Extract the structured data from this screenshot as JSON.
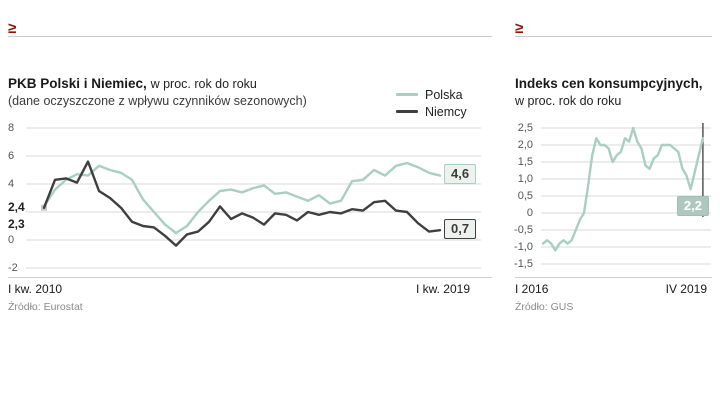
{
  "charts": {
    "left": {
      "logo": "≥",
      "title_bold": "PKB Polski i Niemiec,",
      "title_rest": " w proc. rok do roku",
      "subtitle": "(dane oczyszczone z wpływu czynników sezonowych)",
      "legend": [
        {
          "label": "Polska"
        },
        {
          "label": "Niemcy"
        }
      ],
      "start_label_top": "2,4",
      "start_label_bottom": "2,3",
      "badge_polska": "4,6",
      "badge_niemcy": "0,7",
      "x_start": "I kw. 2010",
      "x_end": "I kw. 2019",
      "source": "Źródło: Eurostat"
    },
    "right": {
      "logo": "≥",
      "title_bold": "Indeks cen konsumpcyjnych,",
      "title_line2": "w proc. rok do roku",
      "badge": "2,2",
      "x_start": "I 2016",
      "x_end": "IV 2019",
      "source": "Źródło: GUS"
    }
  },
  "colors": {
    "polska": "#a9cec3",
    "niemcy": "#3f3f3f",
    "cpi_line": "#a9cec3",
    "grid": "#d8d8d8",
    "logo_red": "#8c1204",
    "marker_line": "#4a4a4a"
  },
  "chart_data": [
    {
      "type": "line",
      "title": "PKB Polski i Niemiec, w proc. rok do roku (dane oczyszczone z wpływu czynników sezonowych)",
      "x_range": [
        "I kw. 2010",
        "I kw. 2019"
      ],
      "x_unit": "quarter",
      "ylim": [
        -2,
        8
      ],
      "grid": true,
      "legend_position": "top-right",
      "y_ticks": [
        {
          "value": 8,
          "label": "8"
        },
        {
          "value": 6,
          "label": "6"
        },
        {
          "value": 4,
          "label": "4"
        },
        {
          "value": 2,
          "label": ""
        },
        {
          "value": 0,
          "label": "0"
        },
        {
          "value": -2,
          "label": "-2"
        }
      ],
      "series": [
        {
          "name": "Polska",
          "color": "#a9cec3",
          "start_value": 2.4,
          "end_value": 4.6,
          "end_label": "4,6",
          "values": [
            2.4,
            3.6,
            4.3,
            4.7,
            4.6,
            5.3,
            5.0,
            4.8,
            4.3,
            2.9,
            2.0,
            1.1,
            0.5,
            1.0,
            2.0,
            2.8,
            3.5,
            3.6,
            3.4,
            3.7,
            3.9,
            3.3,
            3.4,
            3.1,
            2.8,
            3.2,
            2.6,
            2.8,
            4.2,
            4.3,
            5.0,
            4.6,
            5.3,
            5.5,
            5.2,
            4.8,
            4.6
          ]
        },
        {
          "name": "Niemcy",
          "color": "#3f3f3f",
          "start_value": 2.3,
          "end_value": 0.7,
          "end_label": "0,7",
          "values": [
            2.3,
            4.3,
            4.4,
            4.1,
            5.6,
            3.5,
            3.0,
            2.3,
            1.3,
            1.0,
            0.9,
            0.3,
            -0.4,
            0.4,
            0.6,
            1.3,
            2.4,
            1.5,
            1.9,
            1.6,
            1.1,
            1.9,
            1.8,
            1.4,
            2.0,
            1.8,
            2.0,
            1.9,
            2.2,
            2.1,
            2.7,
            2.8,
            2.1,
            2.0,
            1.2,
            0.6,
            0.7
          ]
        }
      ],
      "source": "Źródło: Eurostat"
    },
    {
      "type": "line",
      "title": "Indeks cen konsumpcyjnych, w proc. rok do roku",
      "x_range": [
        "I 2016",
        "IV 2019"
      ],
      "x_unit": "month",
      "ylim": [
        -1.5,
        2.5
      ],
      "grid": true,
      "y_ticks": [
        {
          "value": 2.5,
          "label": "2,5"
        },
        {
          "value": 2.0,
          "label": "2,0"
        },
        {
          "value": 1.5,
          "label": "1,5"
        },
        {
          "value": 1.0,
          "label": "1,0"
        },
        {
          "value": 0.5,
          "label": "0,5"
        },
        {
          "value": 0,
          "label": "0"
        },
        {
          "value": -0.5,
          "label": "-0,5"
        },
        {
          "value": -1.0,
          "label": "-1,0"
        },
        {
          "value": -1.5,
          "label": "-1,5"
        }
      ],
      "series": [
        {
          "name": "Indeks cen konsumpcyjnych",
          "color": "#a9cec3",
          "end_value": 2.2,
          "end_label": "2,2",
          "values": [
            -0.9,
            -0.8,
            -0.9,
            -1.1,
            -0.9,
            -0.8,
            -0.9,
            -0.8,
            -0.5,
            -0.2,
            0.0,
            0.8,
            1.7,
            2.2,
            2.0,
            2.0,
            1.9,
            1.5,
            1.7,
            1.8,
            2.2,
            2.1,
            2.5,
            2.1,
            1.9,
            1.4,
            1.3,
            1.6,
            1.7,
            2.0,
            2.0,
            2.0,
            1.9,
            1.8,
            1.3,
            1.1,
            0.7,
            1.2,
            1.7,
            2.2
          ]
        }
      ],
      "source": "Źródło: GUS"
    }
  ]
}
